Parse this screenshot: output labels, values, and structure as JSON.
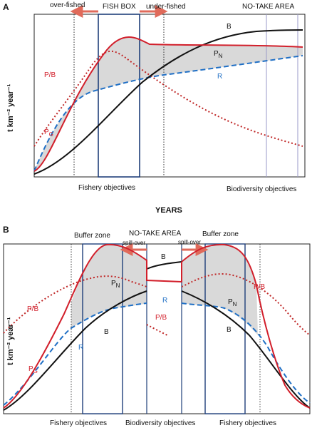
{
  "panel_a": {
    "panel_label": "A",
    "top_labels": {
      "over_fished": "over-fished",
      "fish_box": "FISH BOX",
      "under_fished": "under-fished",
      "no_take": "NO-TAKE AREA"
    },
    "curve_labels": {
      "b": "B",
      "pn": "P",
      "pn_sub": "N",
      "r": "R",
      "pb": "P/B",
      "pg": "P",
      "pg_sub": "G"
    },
    "y_axis": "t km⁻² year⁻¹",
    "bottom_labels": {
      "fishery": "Fishery objectives",
      "biodiversity": "Biodiversity objectives"
    },
    "x_axis": "YEARS"
  },
  "panel_b": {
    "panel_label": "B",
    "top_labels": {
      "buffer_left": "Buffer zone",
      "no_take": "NO-TAKE AREA",
      "buffer_right": "Buffer zone",
      "spill_left": "spill-over",
      "spill_right": "spill-over"
    },
    "curve_labels": {
      "b_top": "B",
      "pn_left": "P",
      "pn_left_sub": "N",
      "pn_right": "P",
      "pn_right_sub": "N",
      "r_left": "R",
      "r_mid": "R",
      "b_left": "B",
      "b_right": "B",
      "pb_left": "P/B",
      "pb_right": "P/B",
      "pb_mid": "P/B",
      "pg": "P",
      "pg_sub": "G"
    },
    "y_axis": "t km⁻² year⁻¹",
    "bottom_labels": {
      "fishery_left": "Fishery objectives",
      "biodiversity": "Biodiversity objectives",
      "fishery_right": "Fishery objectives"
    }
  },
  "colors": {
    "pg": "#d21f2b",
    "r": "#1f6fc5",
    "b": "#111111",
    "fill": "#d9d9d9",
    "box": "#1f3f7a",
    "arrow": "#e06a5a"
  }
}
